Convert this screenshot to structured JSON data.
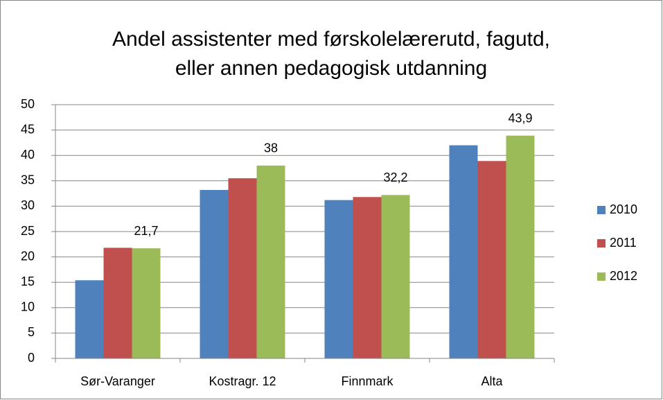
{
  "chart_data": {
    "type": "bar",
    "title": [
      "Andel assistenter med førskolelærerutd, fagutd,",
      "eller annen pedagogisk utdanning"
    ],
    "categories": [
      "Sør-Varanger",
      "Kostragr. 12",
      "Finnmark",
      "Alta"
    ],
    "series": [
      {
        "name": "2010",
        "color": "#4f81bd",
        "values": [
          15.4,
          33.2,
          31.2,
          42.0
        ]
      },
      {
        "name": "2011",
        "color": "#c0504d",
        "values": [
          21.8,
          35.5,
          31.8,
          38.9
        ]
      },
      {
        "name": "2012",
        "color": "#9bbb59",
        "values": [
          21.7,
          38,
          32.2,
          43.9
        ],
        "value_labels": [
          "21,7",
          "38",
          "32,2",
          "43,9"
        ]
      }
    ],
    "ylim": [
      0,
      50
    ],
    "yticks": [
      0,
      5,
      10,
      15,
      20,
      25,
      30,
      35,
      40,
      45,
      50
    ],
    "grid": true,
    "legend": "right"
  }
}
